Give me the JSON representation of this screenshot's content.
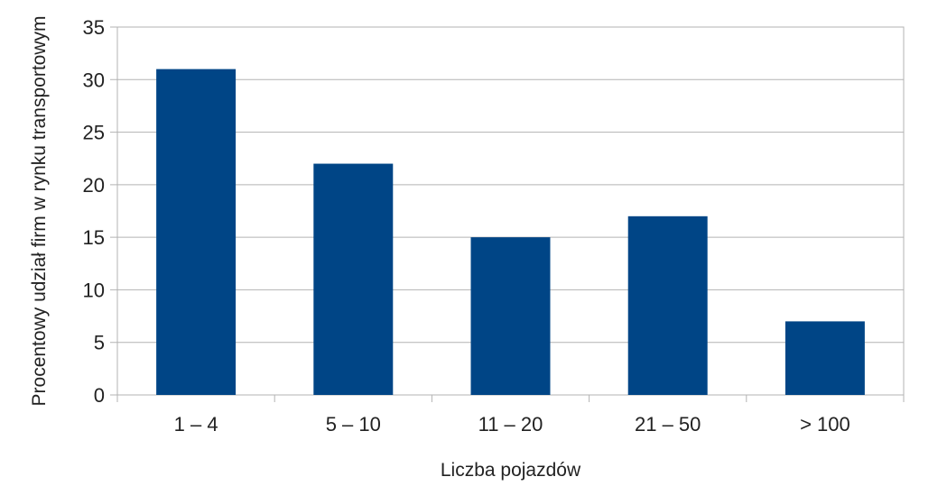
{
  "chart_data": {
    "type": "bar",
    "title": "",
    "xlabel": "Liczba pojazdów",
    "ylabel": "Procentowy udział firm w rynku transportowym",
    "categories": [
      "1 – 4",
      "5 – 10",
      "11 – 20",
      "21 – 50",
      "> 100"
    ],
    "values": [
      31,
      22,
      15,
      17,
      7
    ],
    "ylim": [
      0,
      35
    ],
    "yticks": [
      "0",
      "5",
      "10",
      "15",
      "20",
      "25",
      "30",
      "35"
    ],
    "grid": "horizontal",
    "legend": "none",
    "colors": {
      "bar": "#004586",
      "grid": "#b3b3b3",
      "axis": "#b3b3b3"
    }
  }
}
